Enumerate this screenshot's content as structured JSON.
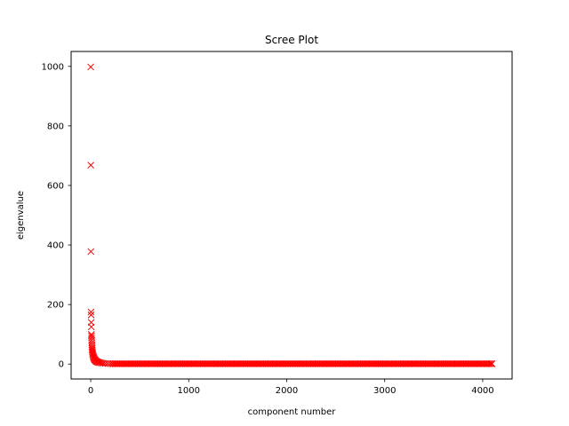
{
  "chart_data": {
    "type": "scatter",
    "title": "Scree Plot",
    "xlabel": "component number",
    "ylabel": "eigenvalue",
    "xlim": [
      -200,
      4300
    ],
    "ylim": [
      -50,
      1050
    ],
    "xticks": [
      0,
      1000,
      2000,
      3000,
      4000
    ],
    "yticks": [
      0,
      200,
      400,
      600,
      800,
      1000
    ],
    "marker": "x",
    "marker_color": "#ff0000",
    "grid": false,
    "legend": "none",
    "n_components": 4096,
    "points": [
      {
        "x": 0,
        "y": 998
      },
      {
        "x": 1,
        "y": 668
      },
      {
        "x": 2,
        "y": 378
      },
      {
        "x": 3,
        "y": 175
      },
      {
        "x": 4,
        "y": 165
      },
      {
        "x": 5,
        "y": 140
      },
      {
        "x": 6,
        "y": 125
      },
      {
        "x": 7,
        "y": 100
      },
      {
        "x": 8,
        "y": 95
      },
      {
        "x": 9,
        "y": 88
      },
      {
        "x": 10,
        "y": 80
      },
      {
        "x": 11,
        "y": 72
      },
      {
        "x": 12,
        "y": 65
      },
      {
        "x": 13,
        "y": 58
      },
      {
        "x": 14,
        "y": 52
      },
      {
        "x": 15,
        "y": 47
      },
      {
        "x": 17,
        "y": 42
      },
      {
        "x": 19,
        "y": 37
      },
      {
        "x": 21,
        "y": 33
      },
      {
        "x": 24,
        "y": 29
      },
      {
        "x": 27,
        "y": 25
      },
      {
        "x": 30,
        "y": 22
      },
      {
        "x": 34,
        "y": 19
      },
      {
        "x": 38,
        "y": 16
      },
      {
        "x": 43,
        "y": 14
      },
      {
        "x": 48,
        "y": 12
      },
      {
        "x": 54,
        "y": 10
      },
      {
        "x": 61,
        "y": 8.5
      },
      {
        "x": 69,
        "y": 7
      },
      {
        "x": 78,
        "y": 6
      },
      {
        "x": 88,
        "y": 5
      },
      {
        "x": 100,
        "y": 4
      },
      {
        "x": 115,
        "y": 3.3
      },
      {
        "x": 130,
        "y": 2.7
      },
      {
        "x": 150,
        "y": 2.2
      },
      {
        "x": 175,
        "y": 1.8
      },
      {
        "x": 200,
        "y": 1.5
      }
    ],
    "tail": {
      "x_start": 220,
      "x_end": 4095,
      "step": 15,
      "y": 1
    }
  }
}
